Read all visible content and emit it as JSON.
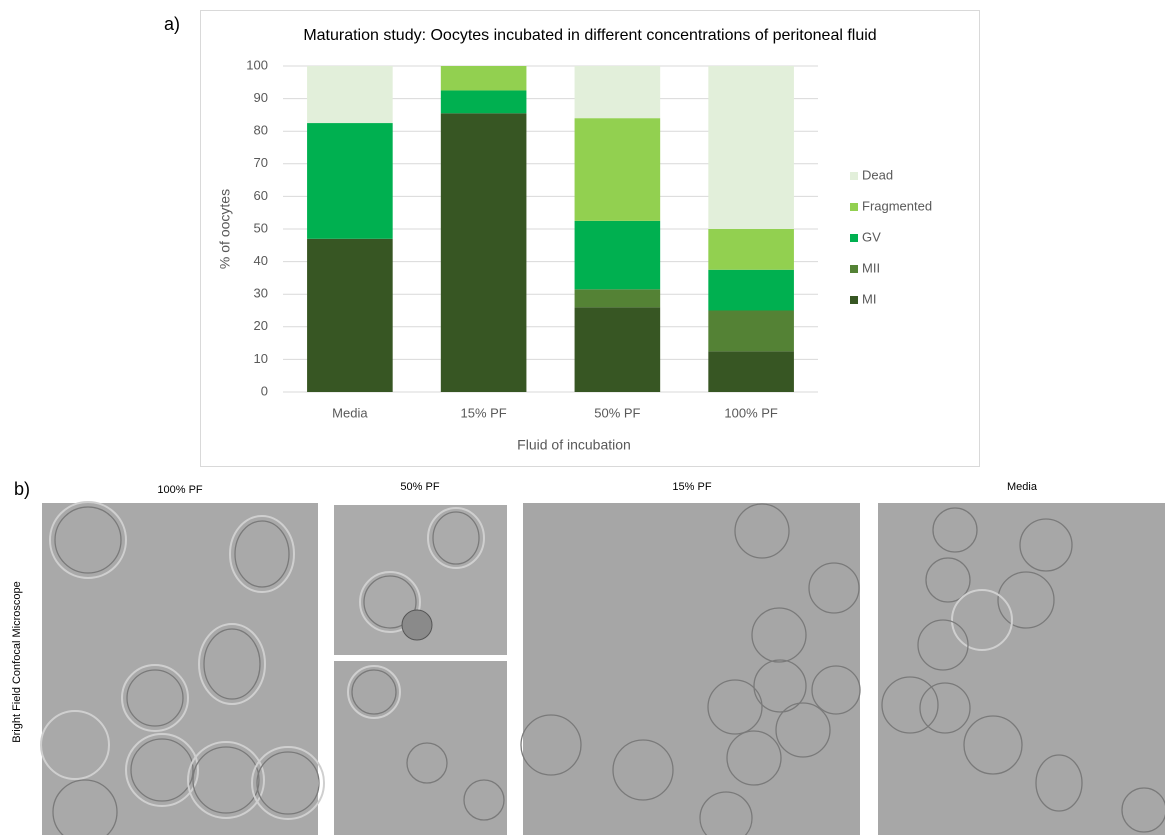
{
  "panels": {
    "a": "a)",
    "b": "b)"
  },
  "chart_data": {
    "type": "stacked_bar",
    "title": "Maturation study: Oocytes incubated in different concentrations of peritoneal fluid",
    "x_label": "Fluid of incubation",
    "y_label": "% of oocytes",
    "categories": [
      "Media",
      "15% PF",
      "50% PF",
      "100% PF"
    ],
    "series": [
      {
        "name": "MI",
        "color": "#375623",
        "values": [
          47,
          85.5,
          26,
          12.5
        ]
      },
      {
        "name": "MII",
        "color": "#548235",
        "values": [
          0,
          0,
          5.5,
          12.5
        ]
      },
      {
        "name": "GV",
        "color": "#00b050",
        "values": [
          35.5,
          7,
          21,
          12.5
        ]
      },
      {
        "name": "Fragmented",
        "color": "#92d050",
        "values": [
          0,
          7.5,
          31.5,
          12.5
        ]
      },
      {
        "name": "Dead",
        "color": "#e2efda",
        "values": [
          17.5,
          0,
          16,
          50
        ]
      }
    ],
    "ylim": [
      0,
      100
    ],
    "yticks": [
      0,
      10,
      20,
      30,
      40,
      50,
      60,
      70,
      80,
      90,
      100
    ],
    "grid": true,
    "legend": "right"
  },
  "images": {
    "row_label": "Bright Field Confocal Microscope",
    "captions": [
      "100% PF",
      "50% PF",
      "15% PF",
      "Media"
    ]
  }
}
